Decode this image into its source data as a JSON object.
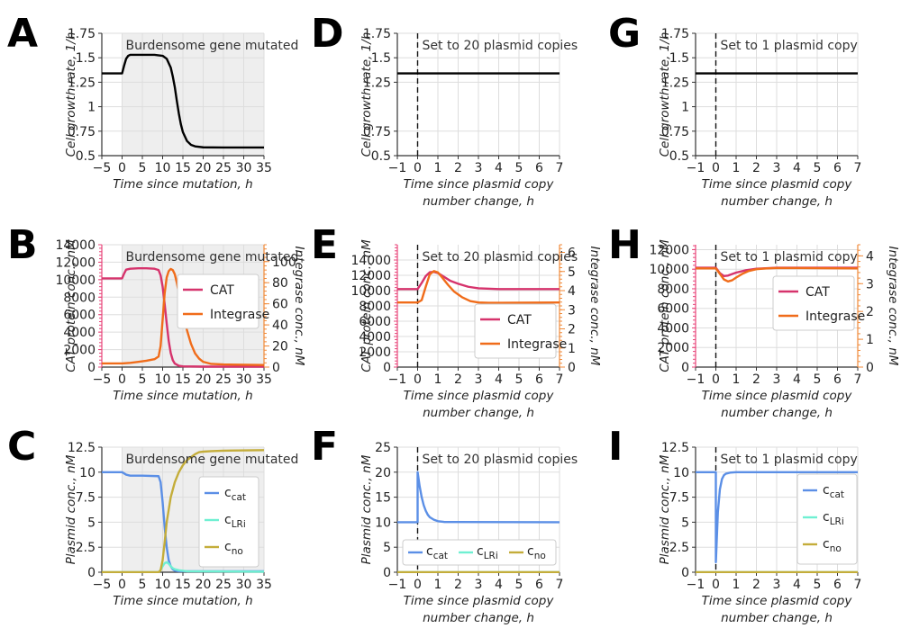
{
  "figure": {
    "letters": [
      "A",
      "B",
      "C",
      "D",
      "E",
      "F",
      "G",
      "H",
      "I"
    ]
  },
  "colors": {
    "growth": "#000000",
    "cat": "#d6336c",
    "integrase": "#f06c1a",
    "c_cat": "#5b8fe6",
    "c_lri": "#6ff0d2",
    "c_no": "#c4ad3a",
    "shade": "#eeeeee",
    "grid": "#dddddd",
    "cat_axis": "#e8457a",
    "int_axis": "#f08a3a"
  },
  "chart_data": [
    {
      "id": "A",
      "type": "line",
      "xlabel": "Time since mutation, h",
      "ylabel": "Cell growth rate, 1/h",
      "xlim": [
        -5,
        35
      ],
      "ylim": [
        0.5,
        1.75
      ],
      "xticks": [
        -5,
        0,
        5,
        10,
        15,
        20,
        25,
        30,
        35
      ],
      "xtick_labels": [
        "−5",
        "0",
        "5",
        "10",
        "15",
        "20",
        "25",
        "30",
        "35"
      ],
      "yticks": [
        0.5,
        0.75,
        1,
        1.25,
        1.5,
        1.75
      ],
      "ytick_labels": [
        "0.5",
        "0.75",
        "1",
        "1.25",
        "1.5",
        "1.75"
      ],
      "annotation": "Burdensome gene mutated",
      "shaded_from": 0,
      "series": [
        {
          "name": "growth rate",
          "color_key": "growth",
          "x": [
            -5,
            0,
            0.5,
            1,
            1.5,
            2,
            4,
            6,
            8,
            10,
            11,
            12,
            12.5,
            13,
            13.5,
            14,
            14.5,
            15,
            16,
            17,
            18,
            20,
            25,
            30,
            35
          ],
          "y": [
            1.34,
            1.34,
            1.42,
            1.49,
            1.52,
            1.53,
            1.53,
            1.53,
            1.53,
            1.52,
            1.49,
            1.4,
            1.31,
            1.2,
            1.06,
            0.93,
            0.82,
            0.74,
            0.65,
            0.61,
            0.595,
            0.585,
            0.583,
            0.583,
            0.583
          ]
        }
      ]
    },
    {
      "id": "B",
      "type": "line",
      "xlabel": "Time since mutation, h",
      "ylabel": "CAT protein conc., nM",
      "ylabel_right": "Integrase conc., nM",
      "xlim": [
        -5,
        35
      ],
      "ylim": [
        0,
        14000
      ],
      "ylim_right": [
        0,
        116
      ],
      "xticks": [
        -5,
        0,
        5,
        10,
        15,
        20,
        25,
        30,
        35
      ],
      "xtick_labels": [
        "−5",
        "0",
        "5",
        "10",
        "15",
        "20",
        "25",
        "30",
        "35"
      ],
      "yticks": [
        0,
        2000,
        4000,
        6000,
        8000,
        10000,
        12000,
        14000
      ],
      "ytick_labels": [
        "0",
        "2000",
        "4000",
        "6000",
        "8000",
        "10000",
        "12000",
        "14000"
      ],
      "yticks_right": [
        0,
        20,
        40,
        60,
        80,
        100
      ],
      "ytick_labels_right": [
        "0",
        "20",
        "40",
        "60",
        "80",
        "100"
      ],
      "annotation": "Burdensome gene mutated",
      "shaded_from": 0,
      "legend": [
        "CAT",
        "Integrase"
      ],
      "series": [
        {
          "name": "CAT",
          "color_key": "cat",
          "axis": "left",
          "x": [
            -5,
            0,
            0.5,
            1,
            2,
            4,
            6,
            8,
            9,
            9.5,
            10,
            10.5,
            11,
            11.5,
            12,
            12.5,
            13,
            14,
            15,
            20,
            35
          ],
          "y": [
            10150,
            10150,
            10700,
            11150,
            11250,
            11300,
            11300,
            11250,
            11100,
            10500,
            9200,
            7200,
            5000,
            3000,
            1600,
            800,
            400,
            150,
            80,
            50,
            50
          ]
        },
        {
          "name": "Integrase",
          "color_key": "integrase",
          "axis": "right",
          "x": [
            -5,
            0,
            2,
            4,
            6,
            8,
            9,
            9.5,
            10,
            10.5,
            11,
            11.5,
            12,
            12.5,
            13,
            13.5,
            14,
            15,
            16,
            17,
            18,
            19,
            20,
            22,
            25,
            35
          ],
          "y": [
            3.5,
            3.5,
            4,
            5,
            6,
            7.5,
            10,
            20,
            45,
            70,
            85,
            91,
            93,
            92,
            88,
            80,
            70,
            52,
            35,
            22,
            13,
            8,
            5,
            3,
            2.5,
            2
          ]
        }
      ]
    },
    {
      "id": "C",
      "type": "line",
      "xlabel": "Time since mutation, h",
      "ylabel": "Plasmid conc., nM",
      "xlim": [
        -5,
        35
      ],
      "ylim": [
        0,
        12.5
      ],
      "xticks": [
        -5,
        0,
        5,
        10,
        15,
        20,
        25,
        30,
        35
      ],
      "xtick_labels": [
        "−5",
        "0",
        "5",
        "10",
        "15",
        "20",
        "25",
        "30",
        "35"
      ],
      "yticks": [
        0,
        2.5,
        5,
        7.5,
        10,
        12.5
      ],
      "ytick_labels": [
        "0",
        "2.5",
        "5",
        "7.5",
        "10",
        "12.5"
      ],
      "annotation": "Burdensome gene mutated",
      "shaded_from": 0,
      "legend": [
        "c_cat",
        "c_LRi",
        "c_no"
      ],
      "series": [
        {
          "name": "c_cat",
          "color_key": "c_cat",
          "x": [
            -5,
            0,
            1,
            2,
            5,
            9,
            9.5,
            10,
            10.5,
            11,
            11.5,
            12,
            12.5,
            13,
            14,
            35
          ],
          "y": [
            10,
            10,
            9.75,
            9.65,
            9.65,
            9.6,
            9,
            7,
            4.5,
            2.5,
            1.2,
            0.6,
            0.3,
            0.15,
            0.1,
            0.1
          ]
        },
        {
          "name": "c_LRi",
          "color_key": "c_lri",
          "x": [
            -5,
            9,
            9.5,
            10,
            10.5,
            11,
            11.5,
            12,
            12.5,
            13,
            14,
            16,
            35
          ],
          "y": [
            0,
            0,
            0.2,
            0.6,
            0.9,
            1.0,
            0.85,
            0.6,
            0.4,
            0.3,
            0.2,
            0.1,
            0.05
          ]
        },
        {
          "name": "c_no",
          "color_key": "c_no",
          "x": [
            -5,
            9,
            9.5,
            10,
            10.5,
            11,
            12,
            13,
            14,
            15,
            16,
            17,
            18,
            19,
            20,
            22,
            25,
            35
          ],
          "y": [
            0,
            0,
            0.2,
            1.2,
            3,
            5,
            7.5,
            9,
            10,
            10.7,
            11.2,
            11.5,
            11.8,
            12,
            12.05,
            12.1,
            12.15,
            12.2
          ]
        }
      ]
    },
    {
      "id": "D",
      "type": "line",
      "xlabel": "Time since plasmid copy",
      "xlabel2": "number change, h",
      "ylabel": "Cell growth rate, 1/h",
      "xlim": [
        -1,
        7
      ],
      "ylim": [
        0.5,
        1.75
      ],
      "xticks": [
        -1,
        0,
        1,
        2,
        3,
        4,
        5,
        6,
        7
      ],
      "xtick_labels": [
        "−1",
        "0",
        "1",
        "2",
        "3",
        "4",
        "5",
        "6",
        "7"
      ],
      "yticks": [
        0.5,
        0.75,
        1.25,
        1.5,
        1.75
      ],
      "ytick_labels": [
        "0.5",
        "0.75",
        "1.25",
        "1.5",
        "1.75"
      ],
      "annotation": "Set to 20 plasmid copies",
      "vline": 0,
      "series": [
        {
          "name": "growth rate",
          "color_key": "growth",
          "x": [
            -1,
            7
          ],
          "y": [
            1.34,
            1.34
          ]
        }
      ]
    },
    {
      "id": "E",
      "type": "line",
      "xlabel": "Time since plasmid copy",
      "xlabel2": "number change, h",
      "ylabel": "CAT protein conc., nM",
      "ylabel_right": "Integrase conc., nM",
      "xlim": [
        -1,
        7
      ],
      "ylim": [
        0,
        16000
      ],
      "ylim_right": [
        0,
        6.4
      ],
      "xticks": [
        -1,
        0,
        1,
        2,
        3,
        4,
        5,
        6,
        7
      ],
      "xtick_labels": [
        "−1",
        "0",
        "1",
        "2",
        "3",
        "4",
        "5",
        "6",
        "7"
      ],
      "yticks": [
        0,
        2000,
        4000,
        6000,
        8000,
        10000,
        12000,
        14000
      ],
      "ytick_labels": [
        "0",
        "2000",
        "4000",
        "6000",
        "8000",
        "10000",
        "12000",
        "14000"
      ],
      "yticks_right": [
        0,
        1,
        2,
        3,
        4,
        5,
        6
      ],
      "ytick_labels_right": [
        "0",
        "1",
        "2",
        "3",
        "4",
        "5",
        "6"
      ],
      "annotation": "Set to 20 plasmid copies",
      "vline": 0,
      "legend": [
        "CAT",
        "Integrase"
      ],
      "series": [
        {
          "name": "CAT",
          "color_key": "cat",
          "axis": "left",
          "x": [
            -1,
            0,
            0.2,
            0.4,
            0.6,
            0.8,
            1,
            1.3,
            1.6,
            2,
            2.5,
            3,
            4,
            5,
            7
          ],
          "y": [
            10200,
            10200,
            11000,
            11900,
            12400,
            12450,
            12300,
            11800,
            11300,
            10900,
            10500,
            10300,
            10200,
            10200,
            10200
          ]
        },
        {
          "name": "Integrase",
          "color_key": "integrase",
          "axis": "right",
          "x": [
            -1,
            0,
            0.2,
            0.4,
            0.6,
            0.8,
            1,
            1.2,
            1.5,
            1.8,
            2.2,
            2.6,
            3,
            3.5,
            4,
            5,
            7
          ],
          "y": [
            3.38,
            3.38,
            3.5,
            4.2,
            4.85,
            5.02,
            4.95,
            4.7,
            4.3,
            3.95,
            3.65,
            3.45,
            3.38,
            3.36,
            3.36,
            3.37,
            3.38
          ]
        }
      ]
    },
    {
      "id": "F",
      "type": "line",
      "xlabel": "Time since plasmid copy",
      "xlabel2": "number change, h",
      "ylabel": "Plasmid conc., nM",
      "xlim": [
        -1,
        7
      ],
      "ylim": [
        0,
        25
      ],
      "xticks": [
        -1,
        0,
        1,
        2,
        3,
        4,
        5,
        6,
        7
      ],
      "xtick_labels": [
        "−1",
        "0",
        "1",
        "2",
        "3",
        "4",
        "5",
        "6",
        "7"
      ],
      "yticks": [
        0,
        5,
        10,
        15,
        20,
        25
      ],
      "ytick_labels": [
        "0",
        "5",
        "10",
        "15",
        "20",
        "25"
      ],
      "annotation": "Set to 20 plasmid copies",
      "vline": 0,
      "legend": [
        "c_cat",
        "c_LRi",
        "c_no"
      ],
      "series": [
        {
          "name": "c_cat",
          "color_key": "c_cat",
          "x": [
            -1,
            0,
            0.001,
            0.1,
            0.2,
            0.3,
            0.4,
            0.5,
            0.6,
            0.8,
            1,
            1.3,
            7
          ],
          "y": [
            10,
            10,
            20,
            17.2,
            15,
            13.4,
            12.3,
            11.5,
            11,
            10.5,
            10.2,
            10.05,
            10
          ]
        },
        {
          "name": "c_LRi",
          "color_key": "c_lri",
          "x": [
            -1,
            7
          ],
          "y": [
            0,
            0
          ]
        },
        {
          "name": "c_no",
          "color_key": "c_no",
          "x": [
            -1,
            7
          ],
          "y": [
            0,
            0
          ]
        }
      ]
    },
    {
      "id": "G",
      "type": "line",
      "xlabel": "Time since plasmid copy",
      "xlabel2": "number change, h",
      "ylabel": "Cell growth rate, 1/h",
      "xlim": [
        -1,
        7
      ],
      "ylim": [
        0.5,
        1.75
      ],
      "xticks": [
        -1,
        0,
        1,
        2,
        3,
        4,
        5,
        6,
        7
      ],
      "xtick_labels": [
        "−1",
        "0",
        "1",
        "2",
        "3",
        "4",
        "5",
        "6",
        "7"
      ],
      "yticks": [
        0.5,
        0.75,
        1,
        1.25,
        1.5,
        1.75
      ],
      "ytick_labels": [
        "0.5",
        "0.75",
        "1",
        "1.25",
        "1.5",
        "1.75"
      ],
      "annotation": "Set to 1 plasmid copy",
      "vline": 0,
      "series": [
        {
          "name": "growth rate",
          "color_key": "growth",
          "x": [
            -1,
            7
          ],
          "y": [
            1.34,
            1.34
          ]
        }
      ]
    },
    {
      "id": "H",
      "type": "line",
      "xlabel": "Time since plasmid copy",
      "xlabel2": "number change, h",
      "ylabel": "CAT protein conc., nM",
      "ylabel_right": "Integrase conc., nM",
      "xlim": [
        -1,
        7
      ],
      "ylim": [
        0,
        12500
      ],
      "ylim_right": [
        0,
        4.4
      ],
      "xticks": [
        -1,
        0,
        1,
        2,
        3,
        4,
        5,
        6,
        7
      ],
      "xtick_labels": [
        "−1",
        "0",
        "1",
        "2",
        "3",
        "4",
        "5",
        "6",
        "7"
      ],
      "yticks": [
        0,
        2000,
        4000,
        6000,
        8000,
        10000,
        12000
      ],
      "ytick_labels": [
        "0",
        "2000",
        "4000",
        "6000",
        "8000",
        "10000",
        "12000"
      ],
      "yticks_right": [
        0,
        1,
        2,
        3,
        4
      ],
      "ytick_labels_right": [
        "0",
        "1",
        "2",
        "3",
        "4"
      ],
      "annotation": "Set to 1 plasmid copy",
      "vline": 0,
      "legend": [
        "CAT",
        "Integrase"
      ],
      "series": [
        {
          "name": "CAT",
          "color_key": "cat",
          "axis": "left",
          "x": [
            -1,
            0,
            0.2,
            0.4,
            0.6,
            0.8,
            1,
            1.5,
            2,
            3,
            4,
            7
          ],
          "y": [
            10150,
            10150,
            9600,
            9300,
            9350,
            9500,
            9650,
            9900,
            10050,
            10150,
            10150,
            10150
          ]
        },
        {
          "name": "Integrase",
          "color_key": "integrase",
          "axis": "right",
          "x": [
            -1,
            0,
            0.2,
            0.4,
            0.6,
            0.8,
            1,
            1.3,
            1.6,
            2,
            2.5,
            3,
            4,
            7
          ],
          "y": [
            3.55,
            3.55,
            3.35,
            3.15,
            3.08,
            3.12,
            3.22,
            3.35,
            3.45,
            3.52,
            3.55,
            3.56,
            3.56,
            3.55
          ]
        }
      ]
    },
    {
      "id": "I",
      "type": "line",
      "xlabel": "Time since plasmid copy",
      "xlabel2": "number change, h",
      "ylabel": "Plasmid conc., nM",
      "xlim": [
        -1,
        7
      ],
      "ylim": [
        0,
        12.5
      ],
      "xticks": [
        -1,
        0,
        1,
        2,
        3,
        4,
        5,
        6,
        7
      ],
      "xtick_labels": [
        "−1",
        "0",
        "1",
        "2",
        "3",
        "4",
        "5",
        "6",
        "7"
      ],
      "yticks": [
        0,
        2.5,
        5,
        7.5,
        10,
        12.5
      ],
      "ytick_labels": [
        "0",
        "2.5",
        "5",
        "7.5",
        "10",
        "12.5"
      ],
      "annotation": "Set to 1 plasmid copy",
      "vline": 0,
      "legend": [
        "c_cat",
        "c_LRi",
        "c_no"
      ],
      "series": [
        {
          "name": "c_cat",
          "color_key": "c_cat",
          "x": [
            -1,
            0,
            0.001,
            0.1,
            0.2,
            0.3,
            0.4,
            0.5,
            0.7,
            1,
            7
          ],
          "y": [
            10,
            10,
            1,
            6,
            8.3,
            9.3,
            9.7,
            9.85,
            9.95,
            10,
            10
          ]
        },
        {
          "name": "c_LRi",
          "color_key": "c_lri",
          "x": [
            -1,
            7
          ],
          "y": [
            0,
            0
          ]
        },
        {
          "name": "c_no",
          "color_key": "c_no",
          "x": [
            -1,
            7
          ],
          "y": [
            0,
            0
          ]
        }
      ]
    }
  ]
}
